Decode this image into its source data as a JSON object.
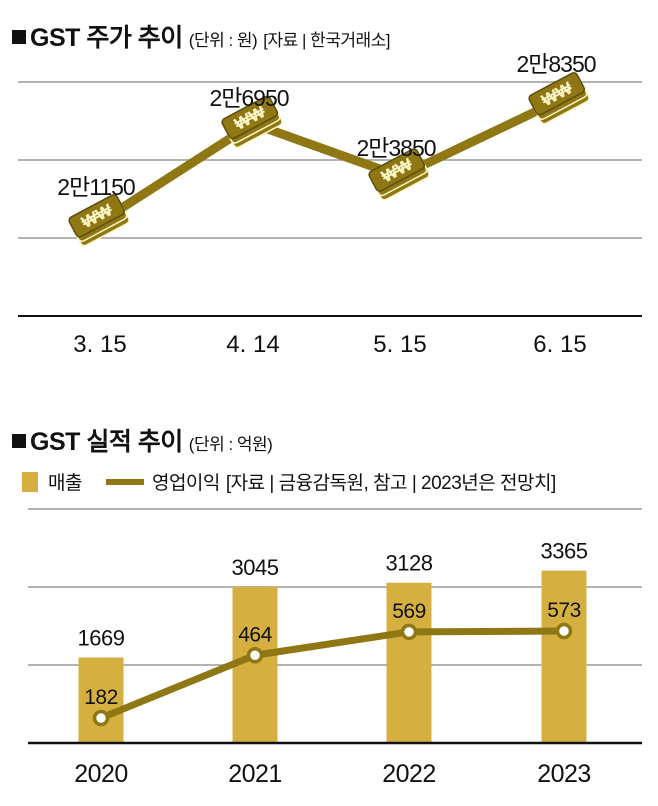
{
  "chart_data": [
    {
      "type": "line",
      "title": "GST 주가 추이",
      "unit_note": "(단위 : 원)",
      "source_note": "[자료 | 한국거래소]",
      "categories": [
        "3. 15",
        "4. 14",
        "5. 15",
        "6. 15"
      ],
      "values": [
        21150,
        26950,
        23850,
        28350
      ],
      "data_labels": [
        "2만1150",
        "2만6950",
        "2만3850",
        "2만8350"
      ],
      "marker_icon": "won-money-stack-icon",
      "ylim": [
        16000,
        30000
      ],
      "grid": true,
      "colors": {
        "line": "#8f7714",
        "marker": "#8f7714",
        "marker_text": "#fff7c8"
      }
    },
    {
      "type": "bar",
      "title": "GST 실적 추이",
      "unit_note": "(단위 : 억원)",
      "legend": [
        "매출",
        "영업이익"
      ],
      "legend_note": "[자료 | 금융감독원, 참고 | 2023년은 전망치]",
      "legend_placement": "top-left",
      "categories": [
        "2020",
        "2021",
        "2022",
        "2023"
      ],
      "series": [
        {
          "name": "매출",
          "type": "bar",
          "values": [
            1669,
            3045,
            3128,
            3365
          ]
        },
        {
          "name": "영업이익",
          "type": "line",
          "values": [
            182,
            464,
            569,
            573
          ]
        }
      ],
      "ylim": [
        0,
        4500
      ],
      "grid": true,
      "colors": {
        "bar": "#d5b041",
        "line": "#8f7714"
      }
    }
  ]
}
